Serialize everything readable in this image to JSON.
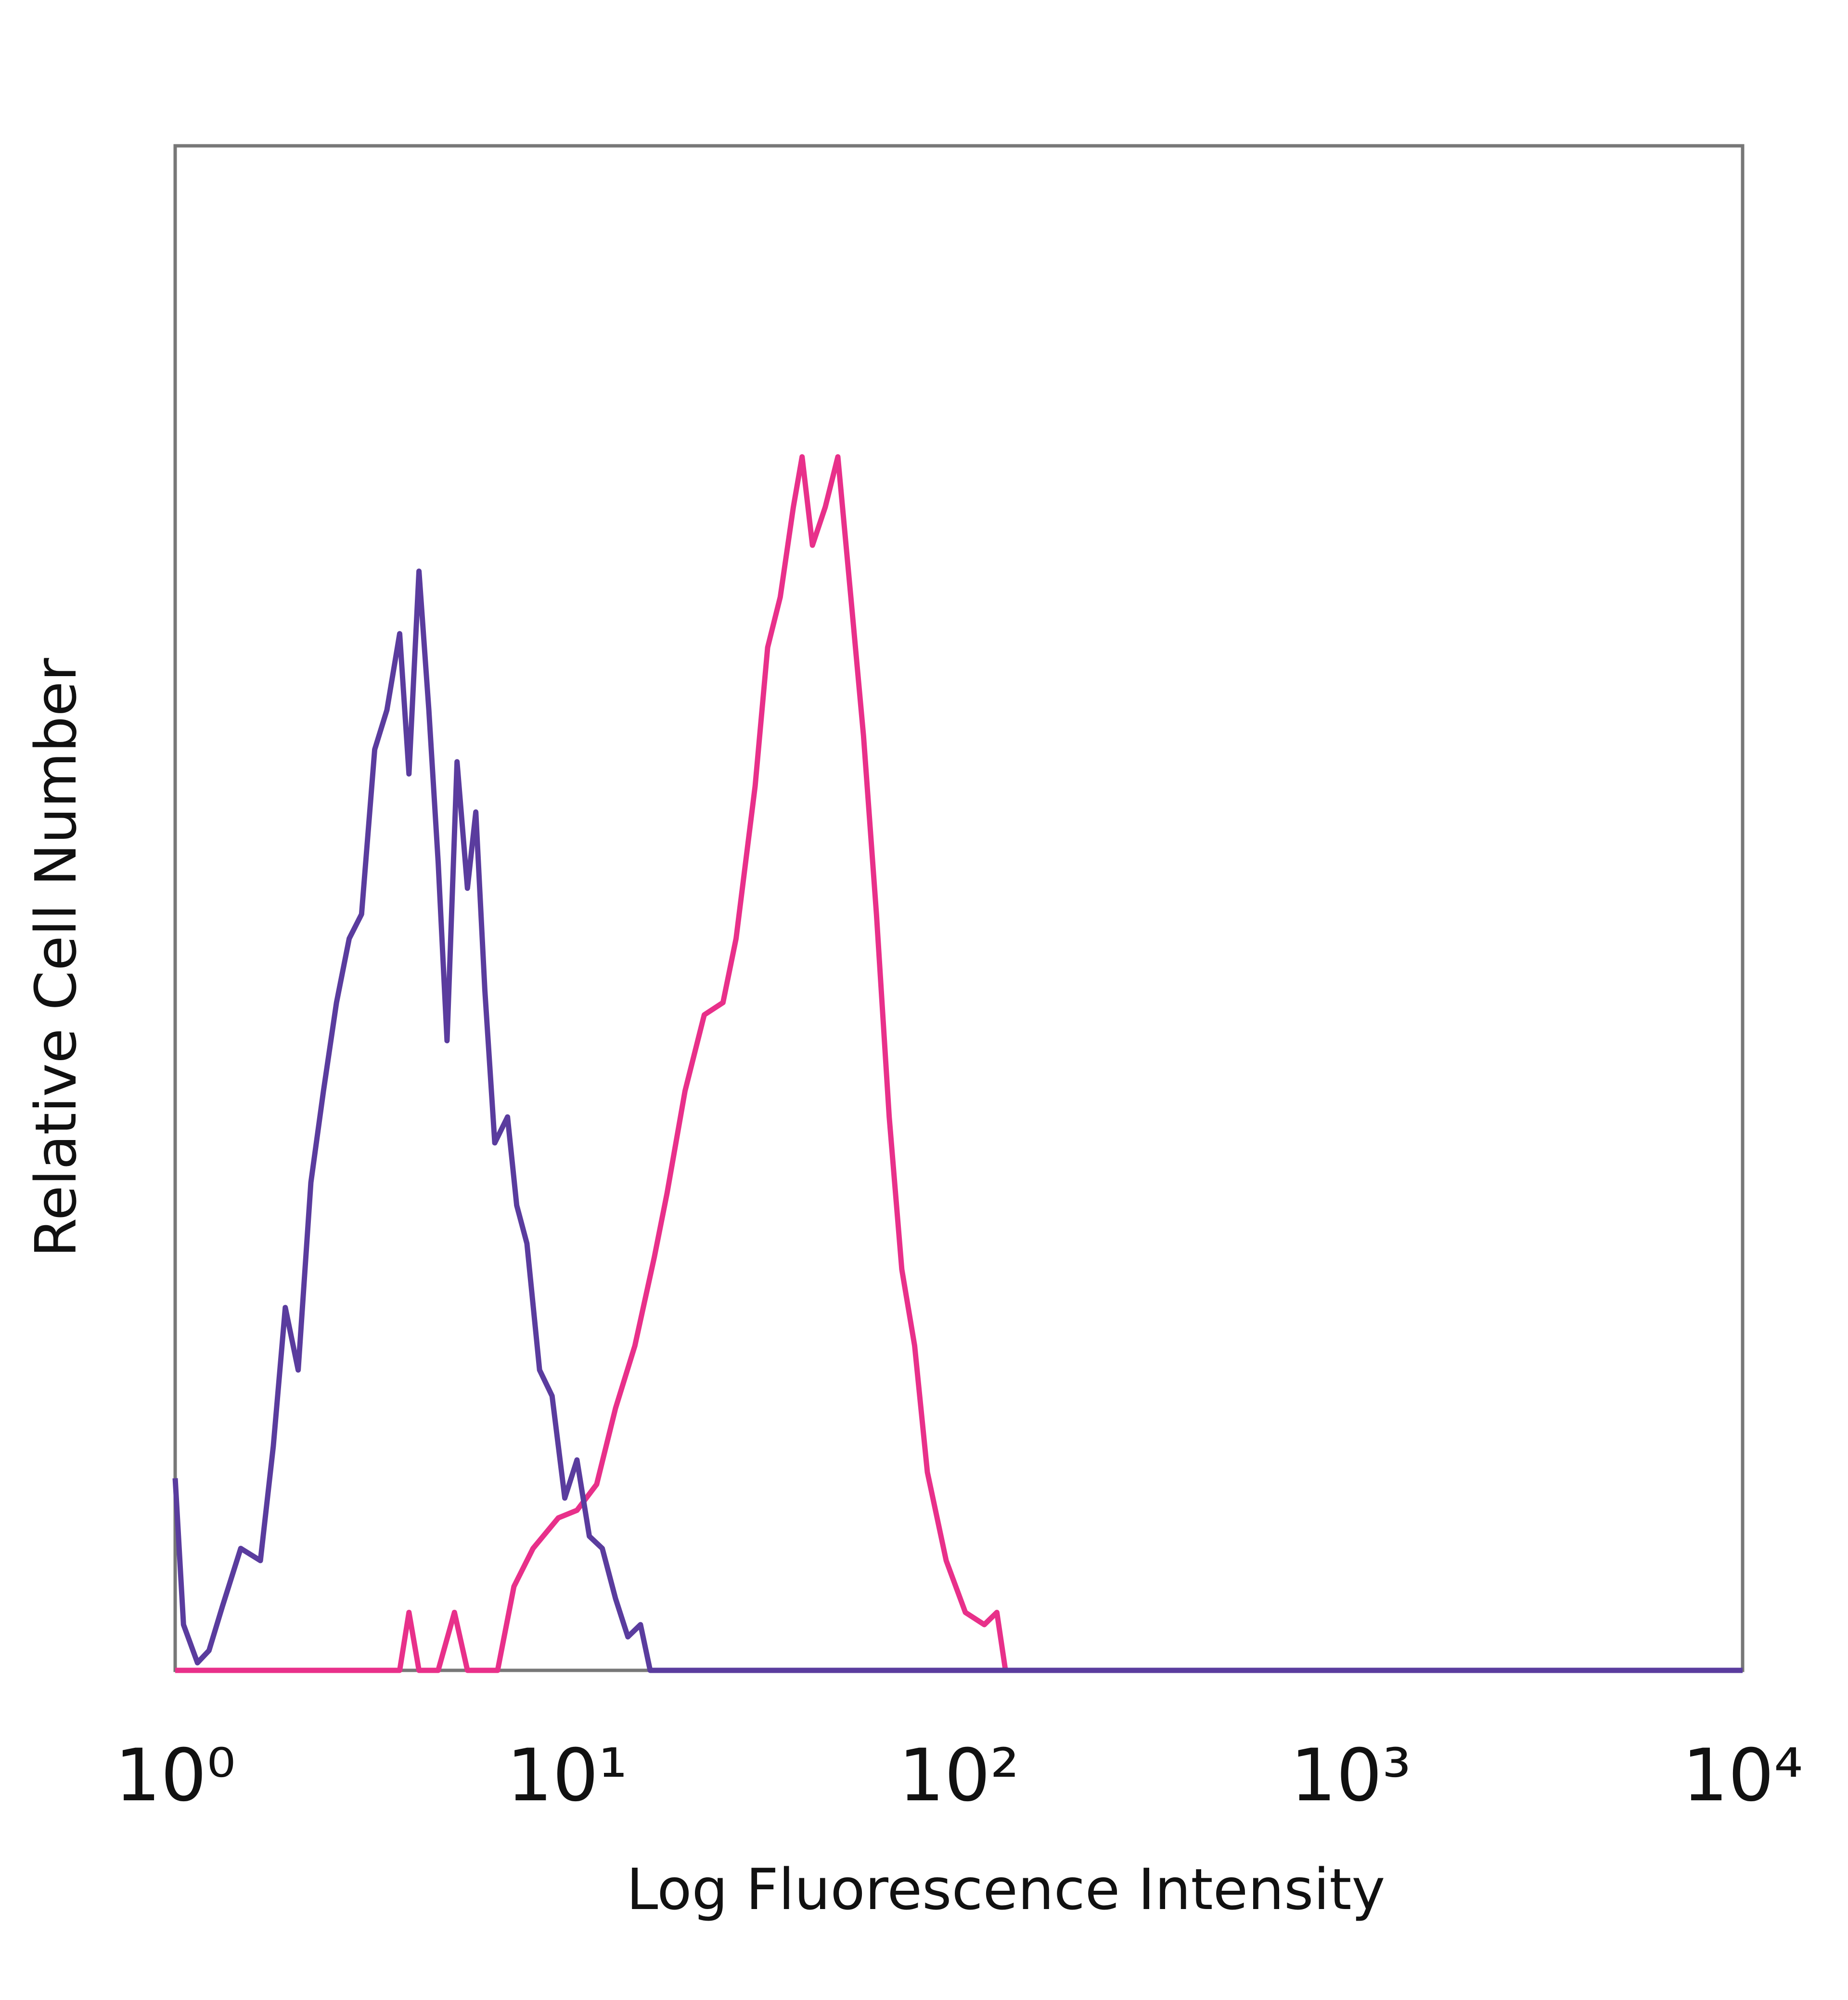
{
  "chart_data": {
    "type": "line",
    "x_label": "Log Fluorescence Intensity",
    "y_label": "Relative Cell Number",
    "xscale": "log",
    "xlim": [
      1,
      10000
    ],
    "ylim": [
      0,
      100
    ],
    "xticks": [
      {
        "value": 1,
        "label": "10⁰"
      },
      {
        "value": 10,
        "label": "10¹"
      },
      {
        "value": 100,
        "label": "10²"
      },
      {
        "value": 1000,
        "label": "10³"
      },
      {
        "value": 10000,
        "label": "10⁴"
      }
    ],
    "series": [
      {
        "color": "#5a3c9e",
        "x": [
          1,
          1.05,
          1.14,
          1.22,
          1.32,
          1.47,
          1.65,
          1.78,
          1.91,
          2.06,
          2.22,
          2.39,
          2.58,
          2.78,
          2.99,
          3.23,
          3.47,
          3.74,
          3.95,
          4.19,
          4.44,
          4.69,
          4.94,
          5.24,
          5.57,
          5.85,
          6.17,
          6.54,
          7.05,
          7.44,
          7.9,
          8.51,
          9.16,
          9.87,
          10.6,
          11.4,
          12.3,
          13.3,
          14.3,
          15.4,
          16.3,
          10000
        ],
        "values": [
          12.6,
          3,
          0.5,
          1.3,
          4.2,
          8,
          7.2,
          14.7,
          23.8,
          19.7,
          32,
          38,
          43.8,
          48,
          49.6,
          60.4,
          63,
          68,
          58.8,
          72.1,
          63,
          53,
          41.3,
          59.6,
          51.3,
          56.3,
          44.6,
          34.6,
          36.3,
          30.5,
          28,
          19.7,
          18,
          11.3,
          13.8,
          8.8,
          8,
          4.7,
          2.2,
          3,
          0,
          0
        ]
      },
      {
        "color": "#e8308a",
        "x": [
          1,
          3.74,
          3.95,
          4.19,
          4.69,
          5.16,
          5.57,
          6.65,
          7.32,
          8.19,
          9.5,
          10.6,
          11.9,
          13.3,
          14.9,
          16.7,
          18,
          20,
          22.4,
          25,
          27,
          30.2,
          32.5,
          35,
          37.8,
          39.8,
          42.3,
          45.6,
          49.1,
          53,
          57.1,
          61.6,
          66.4,
          71.5,
          77.1,
          83.1,
          92.8,
          103.9,
          116.1,
          125,
          131.5
        ],
        "values": [
          0,
          0,
          3.8,
          0,
          0,
          3.8,
          0,
          0,
          5.5,
          8,
          10,
          10.5,
          12.2,
          17.2,
          21.3,
          27.1,
          31.3,
          38,
          43,
          43.8,
          48,
          58,
          67.1,
          70.4,
          76.3,
          79.6,
          73.8,
          76.3,
          79.6,
          70.4,
          61.3,
          49.6,
          36.3,
          26.3,
          21.3,
          13,
          7.2,
          3.8,
          3,
          3.8,
          0
        ]
      }
    ]
  }
}
